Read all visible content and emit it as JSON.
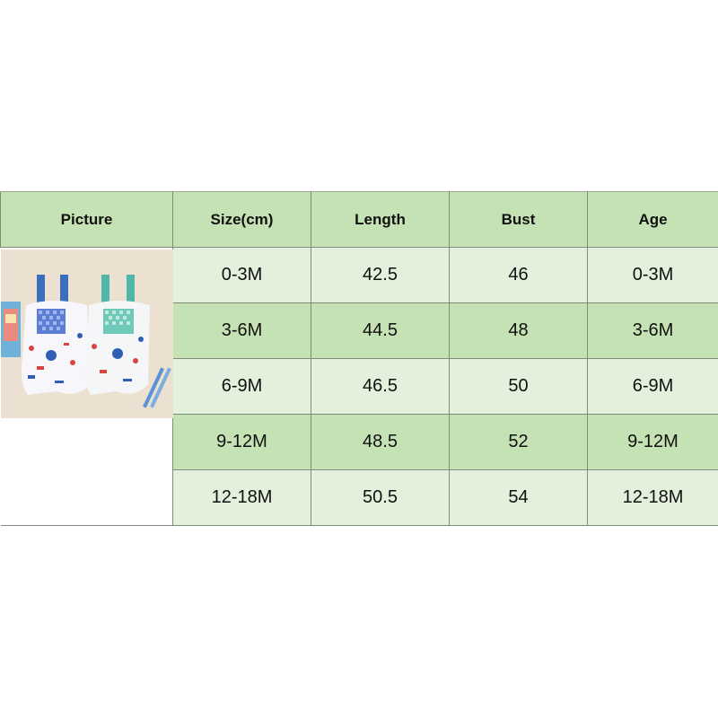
{
  "table": {
    "headers": [
      "Picture",
      "Size(cm)",
      "Length",
      "Bust",
      "Age"
    ],
    "rows": [
      {
        "size": "0-3M",
        "length": "42.5",
        "bust": "46",
        "age": "0-3M"
      },
      {
        "size": "3-6M",
        "length": "44.5",
        "bust": "48",
        "age": "3-6M"
      },
      {
        "size": "6-9M",
        "length": "46.5",
        "bust": "50",
        "age": "6-9M"
      },
      {
        "size": "9-12M",
        "length": "48.5",
        "bust": "52",
        "age": "9-12M"
      },
      {
        "size": "12-18M",
        "length": "50.5",
        "bust": "54",
        "age": "12-18M"
      }
    ]
  },
  "colors": {
    "header_bg": "#c5e2b4",
    "row_light": "#e3f0dc",
    "row_dark": "#c5e2b4",
    "border": "#7f8a78"
  },
  "picture": {
    "description_icon": "product-photo-overalls"
  }
}
